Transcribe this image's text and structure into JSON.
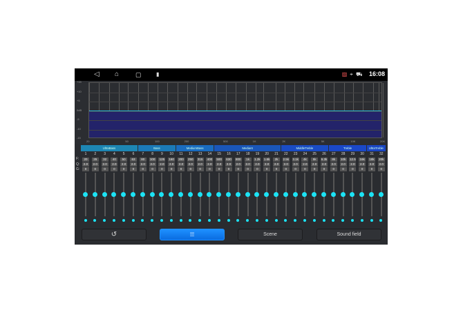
{
  "statusbar": {
    "time": "16:08",
    "nav_icons": [
      "back-icon",
      "home-icon",
      "recents-icon",
      "battery-icon"
    ],
    "status_icons": [
      "no-signal-icon",
      "location-icon",
      "car-icon"
    ]
  },
  "graph": {
    "y_labels": [
      "+15",
      "+10",
      "+5",
      "0dB",
      "-5",
      "-10",
      "-15"
    ],
    "x_labels": [
      "20",
      "50",
      "100",
      "200",
      "500",
      "1K",
      "2K",
      "5K",
      "10K",
      "20K"
    ],
    "current_gain_db": 0,
    "curve_color": "#29b6e8",
    "fill_color": "#23236a"
  },
  "groups": [
    {
      "label": "UltraBass",
      "start": 1,
      "end": 6,
      "color": "#1d86b4"
    },
    {
      "label": "Bass",
      "start": 7,
      "end": 10,
      "color": "#1b7ab8"
    },
    {
      "label": "MediumBass",
      "start": 11,
      "end": 14,
      "color": "#1a6cc0"
    },
    {
      "label": "Mediant",
      "start": 15,
      "end": 21,
      "color": "#1a56b8"
    },
    {
      "label": "MiddleTreble",
      "start": 22,
      "end": 26,
      "color": "#1a4cc4"
    },
    {
      "label": "Treble",
      "start": 27,
      "end": 30,
      "color": "#1a48c8"
    },
    {
      "label": "UltraTreble",
      "start": 31,
      "end": 32,
      "color": "#1a46c4"
    }
  ],
  "row_labels": {
    "f": "F:",
    "q": "Q:",
    "g": "G:"
  },
  "bands": {
    "numbers": [
      "1",
      "2",
      "3",
      "4",
      "5",
      "6",
      "7",
      "8",
      "9",
      "10",
      "11",
      "12",
      "13",
      "14",
      "15",
      "16",
      "17",
      "18",
      "19",
      "20",
      "21",
      "22",
      "23",
      "24",
      "25",
      "26",
      "27",
      "28",
      "29",
      "30",
      "31",
      "32"
    ],
    "freq": [
      "20",
      "25",
      "32",
      "40",
      "50",
      "63",
      "80",
      "100",
      "125",
      "160",
      "200",
      "250",
      "315",
      "400",
      "500",
      "630",
      "800",
      "1k",
      "1.2k",
      "1.6k",
      "2k",
      "2.5k",
      "3.1k",
      "4k",
      "5k",
      "6.3k",
      "8k",
      "10k",
      "12.5",
      "16k",
      "18k",
      "20k"
    ],
    "q": [
      "2.0",
      "2.0",
      "2.0",
      "2.0",
      "2.0",
      "2.0",
      "2.0",
      "2.0",
      "2.0",
      "2.0",
      "2.0",
      "2.0",
      "2.0",
      "2.0",
      "2.0",
      "2.0",
      "2.0",
      "2.0",
      "2.0",
      "2.0",
      "2.0",
      "2.0",
      "2.0",
      "2.0",
      "2.0",
      "2.0",
      "2.0",
      "2.0",
      "2.0",
      "2.0",
      "2.0",
      "2.0"
    ],
    "gain": [
      "0",
      "0",
      "0",
      "0",
      "0",
      "0",
      "0",
      "0",
      "0",
      "0",
      "0",
      "0",
      "0",
      "0",
      "0",
      "0",
      "0",
      "0",
      "0",
      "0",
      "0",
      "0",
      "0",
      "0",
      "0",
      "0",
      "0",
      "0",
      "0",
      "0",
      "0",
      "0"
    ],
    "slider_range_db": [
      -15,
      15
    ]
  },
  "buttons": {
    "reset_icon": "reset-icon",
    "eq_icon": "equalizer-icon",
    "eq_glyph": "⫶⫶⫶",
    "scene": "Scene",
    "sound_field": "Sound field"
  }
}
